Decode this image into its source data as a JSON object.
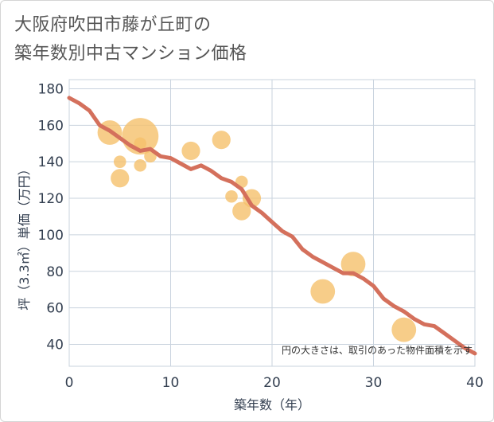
{
  "title_line1": "大阪府吹田市藤が丘町の",
  "title_line2": "築年数別中古マンション価格",
  "chart_data": {
    "type": "scatter",
    "xlabel": "築年数（年）",
    "ylabel": "坪（3.3㎡）単価（万円）",
    "xlim": [
      0,
      40
    ],
    "ylim": [
      28,
      185
    ],
    "xticks": [
      0,
      10,
      20,
      30,
      40
    ],
    "yticks": [
      40,
      60,
      80,
      100,
      120,
      140,
      160,
      180
    ],
    "grid": true,
    "note": "円の大きさは、取引のあった物件面積を示す",
    "bubble_color": "#f5c06b",
    "line_color": "#d4705c",
    "points": [
      {
        "x": 4,
        "y": 156,
        "size": 3
      },
      {
        "x": 7,
        "y": 154,
        "size": 5
      },
      {
        "x": 7,
        "y": 150,
        "size": 1
      },
      {
        "x": 5,
        "y": 140,
        "size": 1
      },
      {
        "x": 8,
        "y": 143,
        "size": 1
      },
      {
        "x": 7,
        "y": 138,
        "size": 1
      },
      {
        "x": 5,
        "y": 131,
        "size": 2
      },
      {
        "x": 12,
        "y": 146,
        "size": 2
      },
      {
        "x": 15,
        "y": 152,
        "size": 2
      },
      {
        "x": 17,
        "y": 129,
        "size": 1
      },
      {
        "x": 16,
        "y": 121,
        "size": 1
      },
      {
        "x": 18,
        "y": 120,
        "size": 2
      },
      {
        "x": 17,
        "y": 113,
        "size": 2
      },
      {
        "x": 25,
        "y": 69,
        "size": 3
      },
      {
        "x": 28,
        "y": 84,
        "size": 3
      },
      {
        "x": 33,
        "y": 48,
        "size": 3
      }
    ],
    "trend": {
      "x": [
        0,
        1,
        2,
        3,
        4,
        5,
        6,
        7,
        8,
        9,
        10,
        11,
        12,
        13,
        14,
        15,
        16,
        17,
        18,
        19,
        20,
        21,
        22,
        23,
        24,
        25,
        26,
        27,
        28,
        29,
        30,
        31,
        32,
        33,
        34,
        35,
        36,
        37,
        38,
        39,
        40
      ],
      "y": [
        175,
        172,
        168,
        160,
        157,
        153,
        149,
        146,
        147,
        143,
        142,
        139,
        136,
        138,
        135,
        131,
        129,
        125,
        116,
        112,
        107,
        102,
        99,
        92,
        88,
        85,
        82,
        79,
        79,
        76,
        72,
        65,
        61,
        58,
        54,
        51,
        50,
        46,
        42,
        38,
        35
      ]
    }
  }
}
